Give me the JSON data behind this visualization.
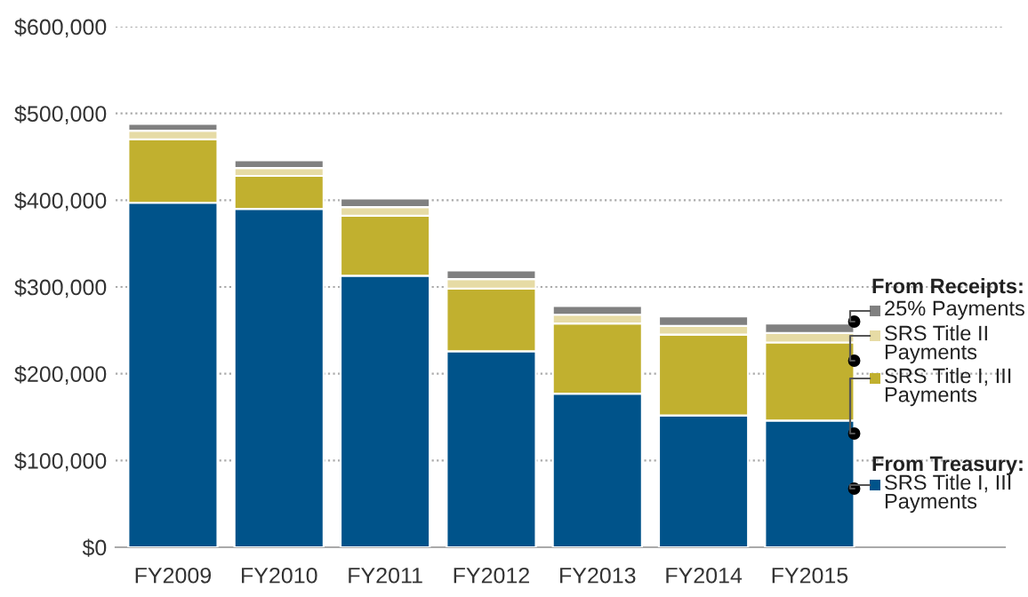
{
  "chart_data": {
    "type": "bar",
    "stacked": true,
    "categories": [
      "FY2009",
      "FY2010",
      "FY2011",
      "FY2012",
      "FY2013",
      "FY2014",
      "FY2015"
    ],
    "series": [
      {
        "name": "SRS Title I, III\nPayments",
        "color": "#00538a",
        "values": [
          397000,
          390000,
          313000,
          226000,
          177000,
          152000,
          146000
        ]
      },
      {
        "name": "SRS Title I, III\nPayments",
        "color": "#c1b02f",
        "values": [
          73000,
          38000,
          69000,
          72000,
          81000,
          93000,
          90000
        ]
      },
      {
        "name": "SRS Title II\nPayments",
        "color": "#e6dba5",
        "values": [
          10000,
          9000,
          10000,
          11000,
          10000,
          10000,
          11000
        ]
      },
      {
        "name": "25% Payments",
        "color": "#808080",
        "values": [
          8000,
          9000,
          10000,
          10000,
          10000,
          11000,
          11000
        ]
      }
    ],
    "ylim": [
      0,
      600000
    ],
    "yticks": [
      {
        "value": 0,
        "label": "$0"
      },
      {
        "value": 100000,
        "label": "$100,000"
      },
      {
        "value": 200000,
        "label": "$200,000"
      },
      {
        "value": 300000,
        "label": "$300,000"
      },
      {
        "value": 400000,
        "label": "$400,000"
      },
      {
        "value": 500000,
        "label": "$500,000"
      },
      {
        "value": 600000,
        "label": "$600,000"
      }
    ],
    "grid": "y",
    "legend": "right",
    "annotations": [
      "From Receipts:",
      "From Treasury:"
    ]
  }
}
